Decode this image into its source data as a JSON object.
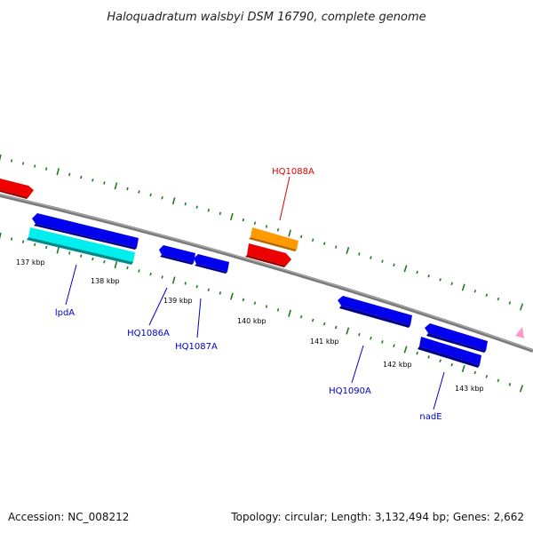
{
  "title": "Haloquadratum walsbyi DSM 16790, complete genome",
  "footer": {
    "accession": "Accession: NC_008212",
    "stats": "Topology: circular; Length: 3,132,494 bp; Genes: 2,662"
  },
  "colors": {
    "backbone": "#8c8c8c",
    "tick": "#1f7a1f",
    "cds_forward": "#ff0000",
    "cds_reverse": "#0000ee",
    "rna": "#00eeee",
    "highlight": "#ff9900",
    "marker": "#ff99cc",
    "label_default": "#0000cc",
    "label_highlight": "#dd0000"
  },
  "ticks": [
    {
      "label": "137 kbp"
    },
    {
      "label": "138 kbp"
    },
    {
      "label": "139 kbp"
    },
    {
      "label": "140 kbp"
    },
    {
      "label": "141 kbp"
    },
    {
      "label": "142 kbp"
    },
    {
      "label": "143 kbp"
    }
  ],
  "features": [
    {
      "name": "red-feature-upper-left",
      "type": "cds_forward"
    },
    {
      "name": "blue-feature-1",
      "type": "cds_reverse"
    },
    {
      "name": "lpdA",
      "type": "rna"
    },
    {
      "name": "HQ1086A",
      "type": "cds_reverse"
    },
    {
      "name": "HQ1087A",
      "type": "cds_reverse"
    },
    {
      "name": "HQ1088A",
      "type": "highlight"
    },
    {
      "name": "red-feature-middle",
      "type": "cds_forward"
    },
    {
      "name": "HQ1090A",
      "type": "cds_reverse"
    },
    {
      "name": "blue-feature-right-upper",
      "type": "cds_reverse"
    },
    {
      "name": "nadE",
      "type": "cds_reverse"
    }
  ],
  "gene_labels": [
    {
      "text": "HQ1088A",
      "highlight": true
    },
    {
      "text": "lpdA",
      "highlight": false
    },
    {
      "text": "HQ1086A",
      "highlight": false
    },
    {
      "text": "HQ1087A",
      "highlight": false
    },
    {
      "text": "HQ1090A",
      "highlight": false
    },
    {
      "text": "nadE",
      "highlight": false
    }
  ]
}
